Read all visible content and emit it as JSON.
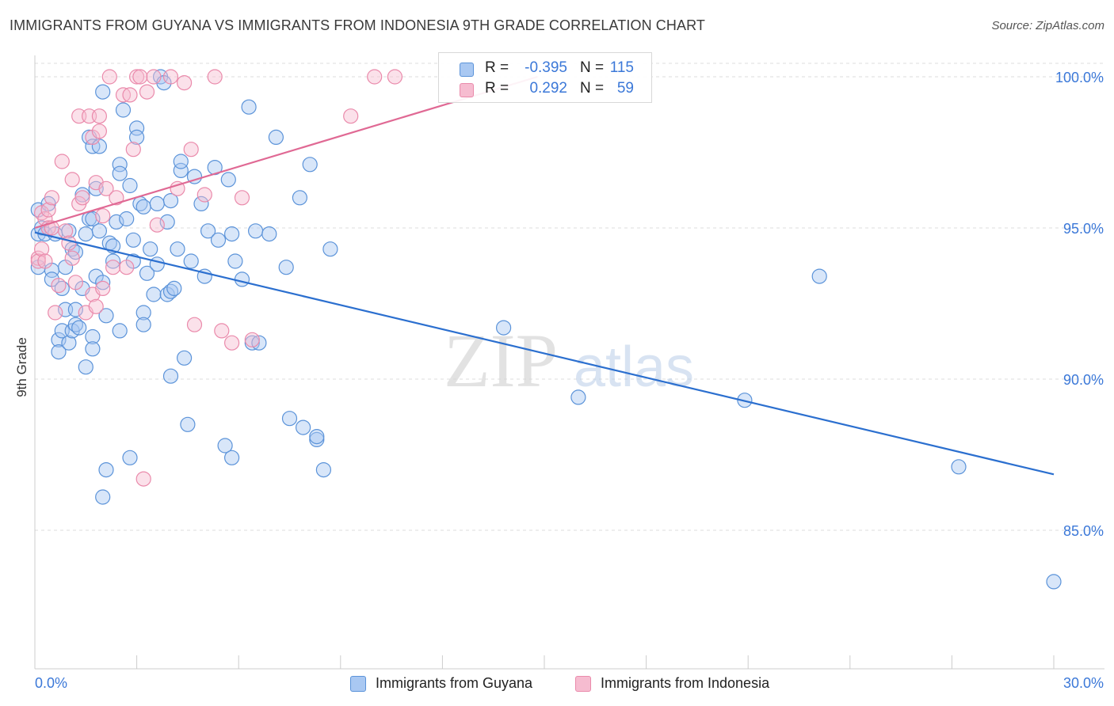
{
  "title": "IMMIGRANTS FROM GUYANA VS IMMIGRANTS FROM INDONESIA 9TH GRADE CORRELATION CHART",
  "source": "Source: ZipAtlas.com",
  "watermark": {
    "zip": "ZIP",
    "atlas": "atlas"
  },
  "legend": {
    "r_label": "R =",
    "n_label": "N =",
    "rows": [
      {
        "r": "-0.395",
        "n": "115"
      },
      {
        "r": "0.292",
        "n": "59"
      }
    ]
  },
  "colors": {
    "guyana_fill": "#a9c8f2",
    "guyana_stroke": "#5b93d9",
    "guyana_line": "#2b6fcf",
    "indonesia_fill": "#f6bcd0",
    "indonesia_stroke": "#ea8aab",
    "indonesia_line": "#e06994",
    "axis_label": "#3b78d8",
    "grid": "#dddddd"
  },
  "chart_data": {
    "type": "scatter",
    "title": "IMMIGRANTS FROM GUYANA VS IMMIGRANTS FROM INDONESIA 9TH GRADE CORRELATION CHART",
    "xlabel": "",
    "ylabel": "9th Grade",
    "xlim": [
      0.0,
      30.0
    ],
    "ylim": [
      80.6,
      100.8
    ],
    "x_tick_labels": [
      "0.0%",
      "30.0%"
    ],
    "y_ticks": [
      85.0,
      90.0,
      95.0,
      100.0
    ],
    "y_tick_labels": [
      "85.0%",
      "90.0%",
      "95.0%",
      "100.0%"
    ],
    "grid": true,
    "series": [
      {
        "name": "Immigrants from Guyana",
        "r": -0.395,
        "n": 115,
        "trend": {
          "x": [
            0.0,
            30.0
          ],
          "y": [
            94.85,
            86.85
          ]
        },
        "points": [
          [
            0.1,
            95.6
          ],
          [
            0.1,
            94.8
          ],
          [
            0.1,
            93.7
          ],
          [
            0.2,
            95.0
          ],
          [
            0.3,
            94.8
          ],
          [
            0.4,
            95.8
          ],
          [
            0.5,
            93.6
          ],
          [
            0.5,
            93.3
          ],
          [
            0.6,
            94.8
          ],
          [
            0.7,
            91.3
          ],
          [
            0.7,
            90.9
          ],
          [
            0.8,
            93.0
          ],
          [
            0.8,
            91.6
          ],
          [
            0.9,
            92.3
          ],
          [
            0.9,
            93.7
          ],
          [
            1.0,
            94.9
          ],
          [
            1.0,
            91.2
          ],
          [
            1.1,
            94.3
          ],
          [
            1.1,
            91.6
          ],
          [
            1.2,
            94.2
          ],
          [
            1.2,
            92.3
          ],
          [
            1.2,
            91.8
          ],
          [
            1.3,
            91.7
          ],
          [
            1.4,
            96.1
          ],
          [
            1.4,
            93.0
          ],
          [
            1.5,
            94.8
          ],
          [
            1.5,
            90.4
          ],
          [
            1.6,
            95.3
          ],
          [
            1.6,
            98.0
          ],
          [
            1.7,
            97.7
          ],
          [
            1.7,
            95.3
          ],
          [
            1.7,
            91.4
          ],
          [
            1.7,
            91.0
          ],
          [
            1.8,
            96.3
          ],
          [
            1.8,
            93.4
          ],
          [
            1.9,
            94.9
          ],
          [
            1.9,
            97.7
          ],
          [
            2.0,
            99.5
          ],
          [
            2.0,
            93.2
          ],
          [
            2.0,
            86.1
          ],
          [
            2.1,
            92.1
          ],
          [
            2.1,
            87.0
          ],
          [
            2.2,
            94.5
          ],
          [
            2.3,
            93.9
          ],
          [
            2.3,
            94.4
          ],
          [
            2.4,
            95.2
          ],
          [
            2.5,
            97.1
          ],
          [
            2.5,
            96.8
          ],
          [
            2.5,
            91.6
          ],
          [
            2.6,
            98.9
          ],
          [
            2.7,
            95.3
          ],
          [
            2.8,
            96.4
          ],
          [
            2.8,
            87.4
          ],
          [
            2.9,
            93.9
          ],
          [
            2.9,
            94.6
          ],
          [
            3.0,
            98.3
          ],
          [
            3.0,
            98.0
          ],
          [
            3.1,
            95.8
          ],
          [
            3.2,
            92.2
          ],
          [
            3.2,
            91.8
          ],
          [
            3.2,
            95.7
          ],
          [
            3.3,
            93.5
          ],
          [
            3.4,
            94.3
          ],
          [
            3.5,
            92.8
          ],
          [
            3.6,
            93.8
          ],
          [
            3.6,
            95.8
          ],
          [
            3.7,
            100.0
          ],
          [
            3.8,
            99.8
          ],
          [
            3.9,
            95.2
          ],
          [
            3.9,
            92.8
          ],
          [
            4.0,
            92.9
          ],
          [
            4.0,
            95.9
          ],
          [
            4.0,
            90.1
          ],
          [
            4.1,
            93.0
          ],
          [
            4.2,
            94.3
          ],
          [
            4.3,
            96.9
          ],
          [
            4.3,
            97.2
          ],
          [
            4.4,
            90.7
          ],
          [
            4.5,
            88.5
          ],
          [
            4.6,
            93.9
          ],
          [
            4.7,
            96.7
          ],
          [
            4.9,
            95.8
          ],
          [
            5.0,
            93.4
          ],
          [
            5.1,
            94.9
          ],
          [
            5.3,
            97.0
          ],
          [
            5.4,
            94.6
          ],
          [
            5.6,
            87.8
          ],
          [
            5.7,
            96.6
          ],
          [
            5.8,
            94.8
          ],
          [
            5.9,
            93.9
          ],
          [
            6.1,
            93.3
          ],
          [
            6.3,
            99.0
          ],
          [
            6.4,
            91.2
          ],
          [
            6.5,
            94.9
          ],
          [
            6.6,
            91.2
          ],
          [
            6.9,
            94.8
          ],
          [
            7.1,
            98.0
          ],
          [
            7.4,
            93.7
          ],
          [
            7.5,
            88.7
          ],
          [
            7.8,
            96.0
          ],
          [
            7.9,
            88.4
          ],
          [
            8.1,
            97.1
          ],
          [
            8.3,
            88.0
          ],
          [
            8.3,
            88.1
          ],
          [
            8.5,
            87.0
          ],
          [
            8.7,
            94.3
          ],
          [
            13.8,
            91.7
          ],
          [
            16.0,
            89.4
          ],
          [
            20.9,
            89.3
          ],
          [
            23.1,
            93.4
          ],
          [
            27.2,
            87.1
          ],
          [
            30.0,
            83.3
          ],
          [
            5.8,
            87.4
          ]
        ]
      },
      {
        "name": "Immigrants from Indonesia",
        "r": 0.292,
        "n": 59,
        "trend": {
          "x": [
            0.0,
            14.8
          ],
          "y": [
            95.0,
            100.0
          ]
        },
        "points": [
          [
            0.1,
            94.0
          ],
          [
            0.1,
            93.9
          ],
          [
            0.2,
            95.5
          ],
          [
            0.2,
            94.3
          ],
          [
            0.3,
            95.3
          ],
          [
            0.3,
            93.9
          ],
          [
            0.4,
            95.6
          ],
          [
            0.4,
            95.0
          ],
          [
            0.5,
            96.0
          ],
          [
            0.5,
            95.0
          ],
          [
            0.6,
            92.2
          ],
          [
            0.7,
            93.1
          ],
          [
            0.8,
            97.2
          ],
          [
            0.9,
            94.9
          ],
          [
            1.0,
            94.5
          ],
          [
            1.1,
            96.6
          ],
          [
            1.1,
            94.0
          ],
          [
            1.2,
            93.2
          ],
          [
            1.3,
            95.8
          ],
          [
            1.3,
            98.7
          ],
          [
            1.4,
            96.0
          ],
          [
            1.5,
            92.2
          ],
          [
            1.6,
            98.7
          ],
          [
            1.7,
            98.0
          ],
          [
            1.7,
            92.8
          ],
          [
            1.8,
            96.5
          ],
          [
            1.8,
            92.4
          ],
          [
            1.9,
            98.2
          ],
          [
            1.9,
            98.7
          ],
          [
            2.0,
            93.0
          ],
          [
            2.0,
            95.4
          ],
          [
            2.1,
            96.3
          ],
          [
            2.2,
            100.0
          ],
          [
            2.3,
            93.7
          ],
          [
            2.4,
            96.0
          ],
          [
            2.6,
            99.4
          ],
          [
            2.7,
            93.7
          ],
          [
            2.8,
            99.4
          ],
          [
            2.9,
            97.6
          ],
          [
            3.0,
            100.0
          ],
          [
            3.1,
            100.0
          ],
          [
            3.2,
            86.7
          ],
          [
            3.3,
            99.5
          ],
          [
            3.5,
            100.0
          ],
          [
            3.6,
            95.1
          ],
          [
            4.0,
            100.0
          ],
          [
            4.2,
            96.3
          ],
          [
            4.4,
            99.8
          ],
          [
            4.6,
            97.6
          ],
          [
            4.7,
            91.8
          ],
          [
            5.0,
            96.1
          ],
          [
            5.3,
            100.0
          ],
          [
            5.5,
            91.6
          ],
          [
            5.8,
            91.2
          ],
          [
            6.1,
            96.0
          ],
          [
            6.4,
            91.3
          ],
          [
            9.3,
            98.7
          ],
          [
            10.0,
            100.0
          ],
          [
            10.6,
            100.0
          ]
        ]
      }
    ]
  }
}
